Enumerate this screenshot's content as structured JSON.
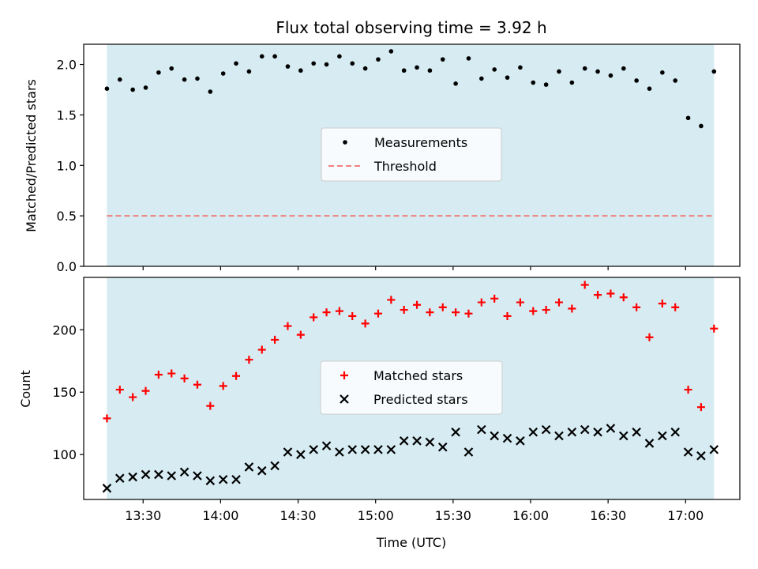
{
  "chart_data": [
    {
      "type": "scatter",
      "title": "Flux total observing time = 3.92 h",
      "xlabel": "",
      "ylabel": "Matched/Predicted stars",
      "ylim": [
        0,
        2.2
      ],
      "yticks": [
        "0.0",
        "0.5",
        "1.0",
        "1.5",
        "2.0"
      ],
      "xticks": [
        "13:30",
        "14:00",
        "14:30",
        "15:00",
        "15:30",
        "16:00",
        "16:30",
        "17:00"
      ],
      "xlim": [
        "13:07",
        "17:21"
      ],
      "shaded_span": [
        "13:16",
        "17:11"
      ],
      "shaded_color": "#add8e6",
      "legend_position": "center",
      "series": [
        {
          "name": "Measurements",
          "color": "#000000",
          "marker": "dot",
          "x": [
            "13:16",
            "13:21",
            "13:26",
            "13:31",
            "13:36",
            "13:41",
            "13:46",
            "13:51",
            "13:56",
            "14:01",
            "14:06",
            "14:11",
            "14:16",
            "14:21",
            "14:26",
            "14:31",
            "14:36",
            "14:41",
            "14:46",
            "14:51",
            "14:56",
            "15:01",
            "15:06",
            "15:11",
            "15:16",
            "15:21",
            "15:26",
            "15:31",
            "15:36",
            "15:41",
            "15:46",
            "15:51",
            "15:56",
            "16:01",
            "16:06",
            "16:11",
            "16:16",
            "16:21",
            "16:26",
            "16:31",
            "16:36",
            "16:41",
            "16:46",
            "16:51",
            "16:56",
            "17:01",
            "17:06",
            "17:11"
          ],
          "y": [
            1.76,
            1.85,
            1.75,
            1.77,
            1.92,
            1.96,
            1.85,
            1.86,
            1.73,
            1.91,
            2.01,
            1.93,
            2.08,
            2.08,
            1.98,
            1.94,
            2.01,
            2.0,
            2.08,
            2.01,
            1.96,
            2.05,
            2.13,
            1.94,
            1.97,
            1.94,
            2.05,
            1.81,
            2.06,
            1.86,
            1.95,
            1.87,
            1.97,
            1.82,
            1.8,
            1.93,
            1.82,
            1.96,
            1.93,
            1.89,
            1.96,
            1.84,
            1.76,
            1.92,
            1.84,
            1.47,
            1.39,
            1.93
          ]
        },
        {
          "name": "Threshold",
          "color": "#f08080",
          "style": "dashed",
          "x": [
            "13:16",
            "17:11"
          ],
          "y": [
            0.5,
            0.5
          ]
        }
      ]
    },
    {
      "type": "scatter",
      "title": "",
      "xlabel": "Time (UTC)",
      "ylabel": "Count",
      "ylim": [
        64,
        242
      ],
      "yticks": [
        "100",
        "150",
        "200"
      ],
      "xticks": [
        "13:30",
        "14:00",
        "14:30",
        "15:00",
        "15:30",
        "16:00",
        "16:30",
        "17:00"
      ],
      "xlim": [
        "13:07",
        "17:21"
      ],
      "shaded_span": [
        "13:16",
        "17:11"
      ],
      "shaded_color": "#add8e6",
      "legend_position": "center",
      "series": [
        {
          "name": "Matched stars",
          "color": "#ff0000",
          "marker": "plus",
          "x": [
            "13:16",
            "13:21",
            "13:26",
            "13:31",
            "13:36",
            "13:41",
            "13:46",
            "13:51",
            "13:56",
            "14:01",
            "14:06",
            "14:11",
            "14:16",
            "14:21",
            "14:26",
            "14:31",
            "14:36",
            "14:41",
            "14:46",
            "14:51",
            "14:56",
            "15:01",
            "15:06",
            "15:11",
            "15:16",
            "15:21",
            "15:26",
            "15:31",
            "15:36",
            "15:41",
            "15:46",
            "15:51",
            "15:56",
            "16:01",
            "16:06",
            "16:11",
            "16:16",
            "16:21",
            "16:26",
            "16:31",
            "16:36",
            "16:41",
            "16:46",
            "16:51",
            "16:56",
            "17:01",
            "17:06",
            "17:11"
          ],
          "y": [
            129,
            152,
            146,
            151,
            164,
            165,
            161,
            156,
            139,
            155,
            163,
            176,
            184,
            192,
            203,
            196,
            210,
            214,
            215,
            211,
            205,
            213,
            224,
            216,
            220,
            214,
            218,
            214,
            213,
            222,
            225,
            211,
            222,
            215,
            216,
            222,
            217,
            236,
            228,
            229,
            226,
            218,
            194,
            221,
            218,
            152,
            138,
            201
          ]
        },
        {
          "name": "Predicted stars",
          "color": "#000000",
          "marker": "x",
          "x": [
            "13:16",
            "13:21",
            "13:26",
            "13:31",
            "13:36",
            "13:41",
            "13:46",
            "13:51",
            "13:56",
            "14:01",
            "14:06",
            "14:11",
            "14:16",
            "14:21",
            "14:26",
            "14:31",
            "14:36",
            "14:41",
            "14:46",
            "14:51",
            "14:56",
            "15:01",
            "15:06",
            "15:11",
            "15:16",
            "15:21",
            "15:26",
            "15:31",
            "15:36",
            "15:41",
            "15:46",
            "15:51",
            "15:56",
            "16:01",
            "16:06",
            "16:11",
            "16:16",
            "16:21",
            "16:26",
            "16:31",
            "16:36",
            "16:41",
            "16:46",
            "16:51",
            "16:56",
            "17:01",
            "17:06",
            "17:11"
          ],
          "y": [
            73,
            81,
            82,
            84,
            84,
            83,
            86,
            83,
            79,
            80,
            80,
            90,
            87,
            91,
            102,
            100,
            104,
            107,
            102,
            104,
            104,
            104,
            104,
            111,
            111,
            110,
            106,
            118,
            102,
            120,
            115,
            113,
            111,
            118,
            120,
            115,
            118,
            120,
            118,
            121,
            115,
            118,
            109,
            115,
            118,
            102,
            99,
            104
          ]
        }
      ]
    }
  ]
}
